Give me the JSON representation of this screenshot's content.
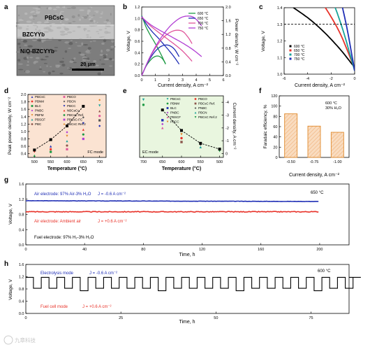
{
  "colors": {
    "black": "#000000",
    "red": "#e8332a",
    "pink": "#e0569b",
    "green": "#1e9a44",
    "blue": "#1f2eb5",
    "purple": "#b13fd4",
    "teal": "#1aa39a",
    "bar_fill": "#f9dcc0",
    "bar_edge": "#e08a2c",
    "bg_green": "#e9f6df",
    "bg_orange": "#fbe3d2",
    "axis_red": "#d62728"
  },
  "panel_labels": [
    "a",
    "b",
    "c",
    "d",
    "e",
    "f",
    "g",
    "h"
  ],
  "panel_a": {
    "layers": [
      "PBCsC",
      "BZCYYb",
      "NiO-BZCYYb"
    ],
    "scale_bar": "20 μm"
  },
  "panel_b": {
    "xlabel": "Current density, A cm⁻²",
    "ylabel": "Voltage, V",
    "y2label": "Power density, W cm⁻²",
    "x_ticks": [
      "0",
      "1",
      "2",
      "3",
      "4",
      "5",
      "6"
    ],
    "y_ticks": [
      "0.0",
      "0.2",
      "0.4",
      "0.6",
      "0.8",
      "1.0",
      "1.2"
    ],
    "y2_ticks": [
      "0.0",
      "0.4",
      "0.8",
      "1.2",
      "1.6",
      "2.0"
    ],
    "legend": [
      "600 °C",
      "650 °C",
      "700 °C",
      "750 °C"
    ]
  },
  "panel_c": {
    "xlabel": "Current density, A cm⁻²",
    "ylabel": "Voltage, V",
    "x_ticks": [
      "-6",
      "-4",
      "-2",
      "0"
    ],
    "y_ticks": [
      "1.0",
      "1.1",
      "1.2",
      "1.3",
      "1.4"
    ],
    "legend": [
      "600 °C",
      "650 °C",
      "700 °C",
      "750 °C"
    ]
  },
  "panel_d": {
    "xlabel": "Temperature (°C)",
    "ylabel": "Peak power density, W cm⁻²",
    "x_ticks": [
      "500",
      "550",
      "600",
      "650",
      "700"
    ],
    "y_ticks": [
      "0.4",
      "0.6",
      "0.8",
      "1.0",
      "1.2",
      "1.4",
      "1.6",
      "1.8",
      "2.0"
    ],
    "mode_label": "FC mode",
    "legend": [
      "PBCsC",
      "PBNM",
      "BLC",
      "PNBC",
      "PBFM",
      "PBSCF",
      "PBC",
      "PBCO",
      "PBCN",
      "PBCC",
      "NBCaCo",
      "PBCsC Ref.",
      "PBCsC-FC",
      "PBCsC Ref.2"
    ]
  },
  "panel_e": {
    "ylabel": "Current density, A cm⁻²",
    "xlabel": "Temperature (°C)",
    "x_ticks": [
      "700",
      "650",
      "600",
      "550",
      "500"
    ],
    "y_ticks": [
      "0",
      "-1",
      "-2",
      "-3",
      "-4"
    ],
    "mode_label": "EC mode",
    "legend": [
      "PBCsC",
      "PBNM",
      "BLC",
      "PNBC",
      "PBSCF",
      "PBCC",
      "PBCO",
      "PBCsC Ref.",
      "PNBC",
      "PBCN",
      "PBCsC Ref.2"
    ]
  },
  "panel_f": {
    "ylabel": "Faradaic efficiency, %",
    "xlabel": "Current density, A cm⁻²",
    "y_ticks": [
      "0",
      "20",
      "40",
      "60",
      "80",
      "100",
      "120"
    ],
    "annotation": [
      "600 °C",
      "30% H₂O"
    ]
  },
  "panel_g": {
    "ylabel": "Voltage, V",
    "xlabel": "Time, h",
    "x_ticks": [
      "0",
      "40",
      "80",
      "120",
      "160",
      "200"
    ],
    "y_ticks": [
      "0.0",
      "0.4",
      "0.8",
      "1.2",
      "1.6"
    ],
    "temperature": "650 °C",
    "line1": "Air electrode: 97% Air-3% H₂O",
    "line1_j": "J = -0.6 A cm⁻²",
    "line2": "Air electrode: Ambient air",
    "line2_j": "J = +0.6 A cm⁻²",
    "line3": "Fuel electrode: 97% H₂-3% H₂O"
  },
  "panel_h": {
    "ylabel": "Voltage, V",
    "xlabel": "Time, h",
    "x_ticks": [
      "0",
      "25",
      "50",
      "75"
    ],
    "y_ticks": [
      "0.0",
      "0.4",
      "0.8",
      "1.2",
      "1.6"
    ],
    "temperature": "600 °C",
    "mode1": "Electrolysis mode",
    "mode1_j": "J = -0.6 A cm⁻²",
    "mode2": "Fuel cell mode",
    "mode2_j": "J = +0.6 A cm⁻²"
  },
  "watermark": "九章科技",
  "chart_data": [
    {
      "panel": "b",
      "type": "line",
      "xlim": [
        0,
        6
      ],
      "ylim": [
        0,
        1.2
      ],
      "y2lim": [
        0,
        2.0
      ],
      "series": [
        {
          "name": "600 °C",
          "color": "#1e9a44",
          "iv": [
            [
              0,
              1.05
            ],
            [
              0.3,
              0.86
            ],
            [
              0.6,
              0.72
            ],
            [
              0.9,
              0.6
            ],
            [
              1.2,
              0.47
            ],
            [
              1.5,
              0.33
            ],
            [
              1.75,
              0.2
            ]
          ],
          "power": [
            [
              0,
              0
            ],
            [
              0.3,
              0.26
            ],
            [
              0.6,
              0.43
            ],
            [
              0.9,
              0.54
            ],
            [
              1.2,
              0.57
            ],
            [
              1.5,
              0.5
            ],
            [
              1.75,
              0.35
            ]
          ]
        },
        {
          "name": "650 °C",
          "color": "#1f2eb5",
          "iv": [
            [
              0,
              1.04
            ],
            [
              0.4,
              0.88
            ],
            [
              0.8,
              0.76
            ],
            [
              1.2,
              0.66
            ],
            [
              1.6,
              0.55
            ],
            [
              2.0,
              0.44
            ],
            [
              2.4,
              0.32
            ],
            [
              2.75,
              0.2
            ]
          ],
          "power": [
            [
              0,
              0
            ],
            [
              0.4,
              0.35
            ],
            [
              0.8,
              0.61
            ],
            [
              1.2,
              0.79
            ],
            [
              1.6,
              0.88
            ],
            [
              2.0,
              0.88
            ],
            [
              2.4,
              0.77
            ],
            [
              2.75,
              0.55
            ]
          ]
        },
        {
          "name": "700 °C",
          "color": "#e0569b",
          "iv": [
            [
              0,
              1.03
            ],
            [
              0.5,
              0.9
            ],
            [
              1.0,
              0.8
            ],
            [
              1.5,
              0.71
            ],
            [
              2.0,
              0.62
            ],
            [
              2.5,
              0.53
            ],
            [
              3.0,
              0.43
            ],
            [
              3.4,
              0.33
            ],
            [
              3.7,
              0.25
            ]
          ],
          "power": [
            [
              0,
              0
            ],
            [
              0.5,
              0.45
            ],
            [
              1.0,
              0.8
            ],
            [
              1.5,
              1.07
            ],
            [
              2.0,
              1.24
            ],
            [
              2.5,
              1.32
            ],
            [
              3.0,
              1.29
            ],
            [
              3.4,
              1.12
            ],
            [
              3.7,
              0.93
            ]
          ]
        },
        {
          "name": "750 °C",
          "color": "#b13fd4",
          "iv": [
            [
              0,
              1.02
            ],
            [
              0.6,
              0.9
            ],
            [
              1.2,
              0.81
            ],
            [
              1.8,
              0.73
            ],
            [
              2.4,
              0.65
            ],
            [
              3.0,
              0.57
            ],
            [
              3.6,
              0.48
            ],
            [
              4.0,
              0.41
            ],
            [
              4.4,
              0.33
            ]
          ],
          "power": [
            [
              0,
              0
            ],
            [
              0.6,
              0.54
            ],
            [
              1.2,
              0.97
            ],
            [
              1.8,
              1.31
            ],
            [
              2.4,
              1.56
            ],
            [
              3.0,
              1.71
            ],
            [
              3.6,
              1.73
            ],
            [
              4.0,
              1.64
            ],
            [
              4.4,
              1.45
            ]
          ]
        }
      ]
    },
    {
      "panel": "c",
      "type": "line",
      "xlim": [
        -6,
        0
      ],
      "ylim": [
        1.0,
        1.4
      ],
      "reference_line": 1.3,
      "series": [
        {
          "name": "600 °C",
          "color": "#000000",
          "points": [
            [
              0,
              1.04
            ],
            [
              -1,
              1.13
            ],
            [
              -2,
              1.21
            ],
            [
              -3,
              1.28
            ],
            [
              -4,
              1.34
            ],
            [
              -5,
              1.39
            ],
            [
              -5.4,
              1.41
            ]
          ]
        },
        {
          "name": "650 °C",
          "color": "#e8332a",
          "points": [
            [
              0,
              1.03
            ],
            [
              -0.6,
              1.14
            ],
            [
              -1.2,
              1.24
            ],
            [
              -1.8,
              1.32
            ],
            [
              -2.4,
              1.39
            ],
            [
              -2.7,
              1.42
            ]
          ]
        },
        {
          "name": "700 °C",
          "color": "#1aa39a",
          "points": [
            [
              0,
              1.02
            ],
            [
              -0.4,
              1.12
            ],
            [
              -0.8,
              1.22
            ],
            [
              -1.2,
              1.31
            ],
            [
              -1.6,
              1.39
            ],
            [
              -1.8,
              1.42
            ]
          ]
        },
        {
          "name": "750 °C",
          "color": "#1f2eb5",
          "points": [
            [
              0,
              1.02
            ],
            [
              -0.25,
              1.12
            ],
            [
              -0.5,
              1.22
            ],
            [
              -0.75,
              1.31
            ],
            [
              -1.0,
              1.39
            ],
            [
              -1.1,
              1.42
            ]
          ]
        }
      ]
    },
    {
      "panel": "d",
      "type": "scatter",
      "xlim": [
        480,
        720
      ],
      "ylim": [
        0.3,
        2.0
      ],
      "trend": {
        "name": "PBCsC",
        "x": [
          500,
          550,
          600,
          650
        ],
        "y": [
          0.5,
          0.78,
          1.15,
          1.68
        ]
      },
      "points": [
        [
          550,
          0.6
        ],
        [
          550,
          0.52
        ],
        [
          550,
          0.45
        ],
        [
          600,
          0.98
        ],
        [
          600,
          0.88
        ],
        [
          600,
          0.74
        ],
        [
          600,
          0.62
        ],
        [
          600,
          0.52
        ],
        [
          650,
          1.38
        ],
        [
          650,
          1.22
        ],
        [
          650,
          1.05
        ],
        [
          650,
          0.92
        ],
        [
          650,
          0.8
        ],
        [
          700,
          1.85
        ],
        [
          700,
          1.7
        ],
        [
          700,
          1.55
        ],
        [
          700,
          1.42
        ],
        [
          700,
          1.3
        ],
        [
          700,
          1.15
        ],
        [
          500,
          0.45
        ],
        [
          500,
          0.35
        ]
      ]
    },
    {
      "panel": "e",
      "type": "scatter",
      "xlim": [
        710,
        490
      ],
      "ylim": [
        0.3,
        -4.5
      ],
      "trend": {
        "name": "PBCsC",
        "x": [
          650,
          600,
          550,
          500
        ],
        "y": [
          -3.4,
          -1.8,
          -0.8,
          -0.35
        ]
      },
      "points": [
        [
          700,
          -4.2
        ],
        [
          700,
          -3.8
        ],
        [
          650,
          -2.6
        ],
        [
          650,
          -2.3
        ],
        [
          650,
          -2.0
        ],
        [
          600,
          -1.5
        ],
        [
          600,
          -1.2
        ],
        [
          600,
          -0.9
        ],
        [
          550,
          -0.7
        ],
        [
          550,
          -0.5
        ],
        [
          500,
          -0.2
        ]
      ]
    },
    {
      "panel": "f",
      "type": "bar",
      "categories": [
        "-0.50",
        "-0.75",
        "-1.00"
      ],
      "values": [
        85,
        61,
        49
      ],
      "ylim": [
        0,
        120
      ]
    },
    {
      "panel": "g",
      "type": "line",
      "xlim": [
        0,
        220
      ],
      "ylim": [
        0,
        1.6
      ],
      "series": [
        {
          "name": "Air electrode: 97% Air-3% H₂O",
          "color": "#1f2eb5",
          "x": [
            0,
            200
          ],
          "y": [
            1.16,
            1.14
          ]
        },
        {
          "name": "Air electrode: Ambient air",
          "color": "#e8332a",
          "x": [
            0,
            200
          ],
          "y": [
            0.87,
            0.87
          ]
        }
      ]
    },
    {
      "panel": "h",
      "type": "line",
      "xlim": [
        0,
        85
      ],
      "ylim": [
        0,
        1.6
      ],
      "series": [
        {
          "name": "cycling",
          "color": "#000000",
          "high": 1.18,
          "low": 0.82,
          "cycle_hours": 4.1,
          "start_hours": 2,
          "end_hours": 84
        }
      ]
    }
  ]
}
